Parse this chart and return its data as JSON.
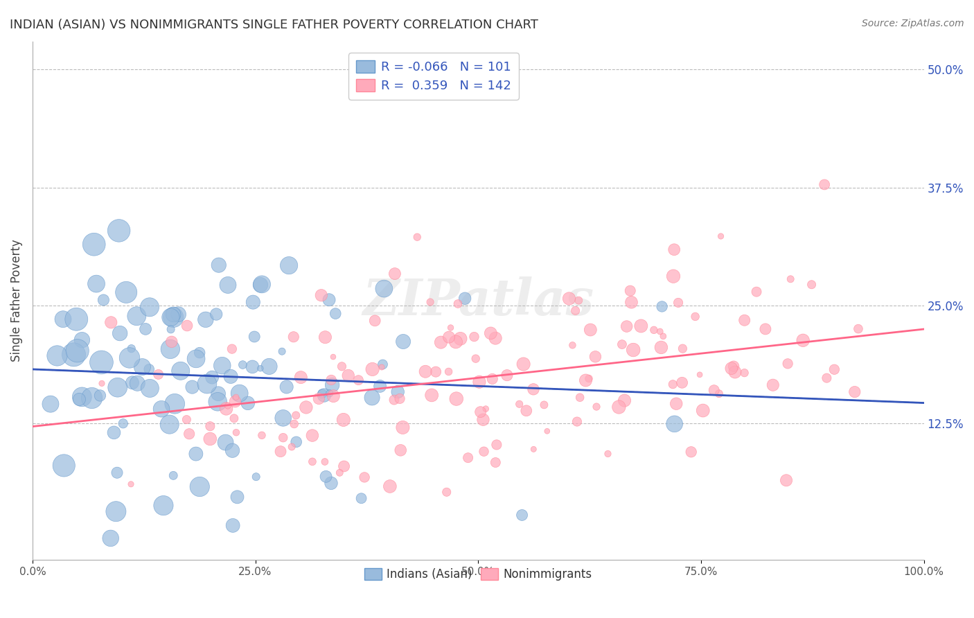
{
  "title": "INDIAN (ASIAN) VS NONIMMIGRANTS SINGLE FATHER POVERTY CORRELATION CHART",
  "source": "Source: ZipAtlas.com",
  "ylabel": "Single Father Poverty",
  "right_yticks": [
    0.0,
    0.125,
    0.25,
    0.375,
    0.5
  ],
  "right_yticklabels": [
    "",
    "12.5%",
    "25.0%",
    "37.5%",
    "50.0%"
  ],
  "color_blue": "#99BBDD",
  "color_blue_edge": "#6699CC",
  "color_blue_line": "#3355BB",
  "color_pink": "#FFAABB",
  "color_pink_edge": "#FF8899",
  "color_pink_line": "#FF6688",
  "color_legend_r": "#3355BB",
  "watermark": "ZIPatlas",
  "blue_R": -0.066,
  "blue_N": 101,
  "pink_R": 0.359,
  "pink_N": 142,
  "seed_blue": 42,
  "seed_pink": 99,
  "seed_sizes": 7,
  "xlim": [
    0.0,
    1.0
  ],
  "ylim": [
    -0.02,
    0.53
  ]
}
